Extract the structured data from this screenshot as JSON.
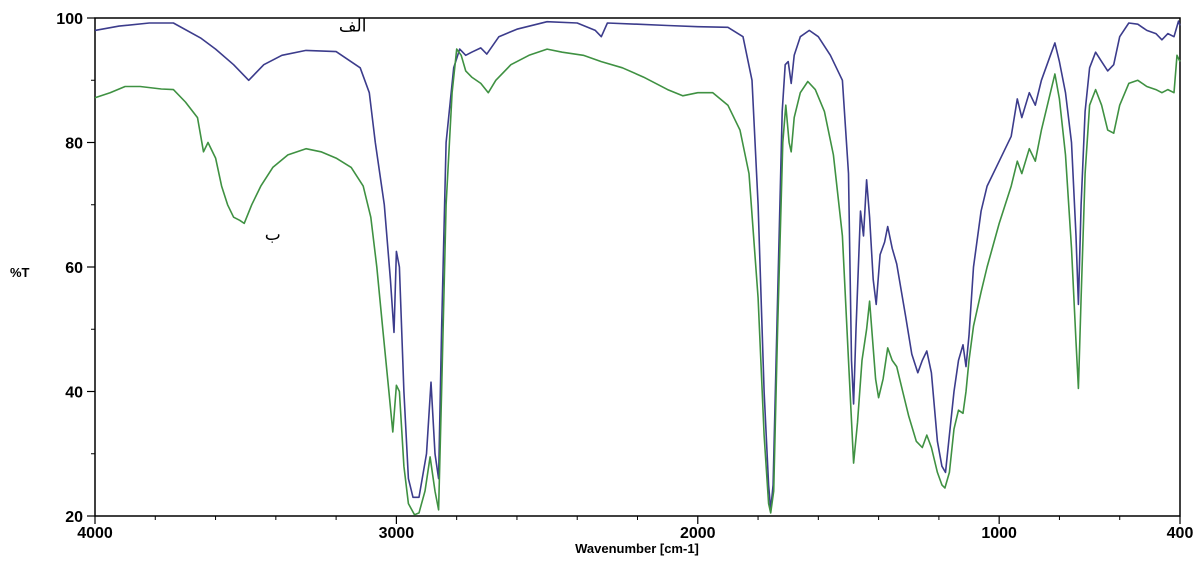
{
  "chart_data": {
    "type": "line",
    "xlabel": "Wavenumber [cm-1]",
    "ylabel": "%T",
    "xlim": [
      4000,
      400
    ],
    "ylim": [
      20,
      100
    ],
    "x_reversed": true,
    "grid": false,
    "x_ticks": [
      4000,
      3000,
      2000,
      1000,
      400
    ],
    "y_ticks": [
      20,
      40,
      60,
      80,
      100
    ],
    "colors": {
      "series_a": "#3c3c8c",
      "series_b": "#3f9142"
    },
    "annotations": [
      {
        "text": "الف",
        "x": 3145,
        "y": 97.8
      },
      {
        "text": "ب",
        "x": 3410,
        "y": 64.3
      }
    ],
    "series": [
      {
        "name": "الف",
        "color": "#3c3c8c",
        "points": [
          [
            4000,
            98.0
          ],
          [
            3920,
            98.7
          ],
          [
            3820,
            99.2
          ],
          [
            3740,
            99.2
          ],
          [
            3650,
            96.8
          ],
          [
            3600,
            95.0
          ],
          [
            3540,
            92.5
          ],
          [
            3490,
            90.0
          ],
          [
            3440,
            92.5
          ],
          [
            3380,
            94.0
          ],
          [
            3300,
            94.8
          ],
          [
            3200,
            94.6
          ],
          [
            3120,
            92.0
          ],
          [
            3090,
            88.0
          ],
          [
            3070,
            80.0
          ],
          [
            3040,
            70.0
          ],
          [
            3020,
            58.0
          ],
          [
            3008,
            49.5
          ],
          [
            3000,
            62.5
          ],
          [
            2990,
            60.0
          ],
          [
            2975,
            40.0
          ],
          [
            2960,
            26.0
          ],
          [
            2945,
            23.0
          ],
          [
            2925,
            23.0
          ],
          [
            2900,
            30.0
          ],
          [
            2885,
            41.5
          ],
          [
            2872,
            30.0
          ],
          [
            2860,
            26.0
          ],
          [
            2850,
            50.0
          ],
          [
            2835,
            80.0
          ],
          [
            2810,
            92.0
          ],
          [
            2790,
            95.0
          ],
          [
            2770,
            94.0
          ],
          [
            2750,
            94.5
          ],
          [
            2720,
            95.2
          ],
          [
            2700,
            94.2
          ],
          [
            2660,
            97.0
          ],
          [
            2600,
            98.2
          ],
          [
            2500,
            99.4
          ],
          [
            2400,
            99.2
          ],
          [
            2340,
            98.0
          ],
          [
            2320,
            97.0
          ],
          [
            2300,
            99.2
          ],
          [
            2200,
            99.0
          ],
          [
            2100,
            98.8
          ],
          [
            2000,
            98.6
          ],
          [
            1900,
            98.5
          ],
          [
            1850,
            97.0
          ],
          [
            1820,
            90.0
          ],
          [
            1800,
            70.0
          ],
          [
            1780,
            40.0
          ],
          [
            1765,
            25.0
          ],
          [
            1758,
            21.0
          ],
          [
            1750,
            25.0
          ],
          [
            1735,
            55.0
          ],
          [
            1720,
            85.0
          ],
          [
            1710,
            92.5
          ],
          [
            1700,
            93.0
          ],
          [
            1690,
            89.5
          ],
          [
            1680,
            94.0
          ],
          [
            1660,
            97.0
          ],
          [
            1630,
            98.0
          ],
          [
            1600,
            97.0
          ],
          [
            1560,
            94.0
          ],
          [
            1520,
            90.0
          ],
          [
            1500,
            75.0
          ],
          [
            1490,
            45.0
          ],
          [
            1483,
            38.0
          ],
          [
            1475,
            50.0
          ],
          [
            1460,
            69.0
          ],
          [
            1450,
            65.0
          ],
          [
            1440,
            74.0
          ],
          [
            1430,
            68.0
          ],
          [
            1418,
            58.0
          ],
          [
            1408,
            54.0
          ],
          [
            1395,
            62.0
          ],
          [
            1380,
            64.0
          ],
          [
            1370,
            66.5
          ],
          [
            1355,
            63.0
          ],
          [
            1340,
            60.5
          ],
          [
            1310,
            52.0
          ],
          [
            1290,
            46.0
          ],
          [
            1270,
            43.0
          ],
          [
            1255,
            45.0
          ],
          [
            1240,
            46.5
          ],
          [
            1225,
            43.0
          ],
          [
            1205,
            32.0
          ],
          [
            1190,
            28.0
          ],
          [
            1178,
            27.0
          ],
          [
            1165,
            33.0
          ],
          [
            1150,
            40.0
          ],
          [
            1135,
            45.0
          ],
          [
            1120,
            47.5
          ],
          [
            1110,
            44.0
          ],
          [
            1100,
            49.0
          ],
          [
            1085,
            60.0
          ],
          [
            1060,
            69.0
          ],
          [
            1040,
            73.0
          ],
          [
            1000,
            77.0
          ],
          [
            960,
            81.0
          ],
          [
            940,
            87.0
          ],
          [
            925,
            84.0
          ],
          [
            900,
            88.0
          ],
          [
            880,
            86.0
          ],
          [
            860,
            90.0
          ],
          [
            830,
            94.0
          ],
          [
            815,
            96.0
          ],
          [
            800,
            93.0
          ],
          [
            780,
            88.0
          ],
          [
            760,
            80.0
          ],
          [
            745,
            65.0
          ],
          [
            737,
            54.0
          ],
          [
            728,
            70.0
          ],
          [
            715,
            85.0
          ],
          [
            700,
            92.0
          ],
          [
            680,
            94.5
          ],
          [
            660,
            93.0
          ],
          [
            640,
            91.5
          ],
          [
            620,
            92.5
          ],
          [
            600,
            97.0
          ],
          [
            570,
            99.2
          ],
          [
            540,
            99.0
          ],
          [
            510,
            98.0
          ],
          [
            480,
            97.5
          ],
          [
            460,
            96.5
          ],
          [
            440,
            97.5
          ],
          [
            420,
            97.0
          ],
          [
            405,
            99.5
          ],
          [
            400,
            98.8
          ]
        ]
      },
      {
        "name": "ب",
        "color": "#3f9142",
        "points": [
          [
            4000,
            87.2
          ],
          [
            3950,
            88.0
          ],
          [
            3900,
            89.0
          ],
          [
            3850,
            89.0
          ],
          [
            3780,
            88.6
          ],
          [
            3740,
            88.5
          ],
          [
            3700,
            86.5
          ],
          [
            3660,
            84.0
          ],
          [
            3640,
            78.5
          ],
          [
            3625,
            80.0
          ],
          [
            3600,
            77.5
          ],
          [
            3580,
            73.0
          ],
          [
            3560,
            70.0
          ],
          [
            3540,
            68.0
          ],
          [
            3520,
            67.5
          ],
          [
            3505,
            67.0
          ],
          [
            3480,
            70.0
          ],
          [
            3450,
            73.0
          ],
          [
            3410,
            76.0
          ],
          [
            3360,
            78.0
          ],
          [
            3300,
            79.0
          ],
          [
            3250,
            78.5
          ],
          [
            3200,
            77.5
          ],
          [
            3150,
            76.0
          ],
          [
            3110,
            73.0
          ],
          [
            3085,
            68.0
          ],
          [
            3065,
            60.0
          ],
          [
            3045,
            50.0
          ],
          [
            3025,
            40.0
          ],
          [
            3012,
            33.5
          ],
          [
            3000,
            41.0
          ],
          [
            2990,
            40.0
          ],
          [
            2975,
            28.0
          ],
          [
            2960,
            22.0
          ],
          [
            2940,
            20.2
          ],
          [
            2925,
            20.5
          ],
          [
            2905,
            24.0
          ],
          [
            2888,
            29.5
          ],
          [
            2872,
            24.0
          ],
          [
            2860,
            21.0
          ],
          [
            2850,
            40.0
          ],
          [
            2835,
            70.0
          ],
          [
            2815,
            88.0
          ],
          [
            2800,
            95.0
          ],
          [
            2785,
            94.0
          ],
          [
            2770,
            91.5
          ],
          [
            2750,
            90.5
          ],
          [
            2720,
            89.5
          ],
          [
            2695,
            88.0
          ],
          [
            2670,
            90.0
          ],
          [
            2620,
            92.5
          ],
          [
            2560,
            94.0
          ],
          [
            2500,
            95.0
          ],
          [
            2450,
            94.5
          ],
          [
            2380,
            94.0
          ],
          [
            2320,
            93.0
          ],
          [
            2250,
            92.0
          ],
          [
            2180,
            90.5
          ],
          [
            2100,
            88.5
          ],
          [
            2050,
            87.5
          ],
          [
            2000,
            88.0
          ],
          [
            1950,
            88.0
          ],
          [
            1900,
            86.0
          ],
          [
            1860,
            82.0
          ],
          [
            1830,
            75.0
          ],
          [
            1800,
            55.0
          ],
          [
            1780,
            33.0
          ],
          [
            1765,
            22.0
          ],
          [
            1758,
            20.5
          ],
          [
            1748,
            24.0
          ],
          [
            1735,
            50.0
          ],
          [
            1718,
            80.0
          ],
          [
            1708,
            86.0
          ],
          [
            1697,
            80.0
          ],
          [
            1690,
            78.5
          ],
          [
            1680,
            84.0
          ],
          [
            1660,
            88.0
          ],
          [
            1635,
            89.8
          ],
          [
            1610,
            88.5
          ],
          [
            1580,
            85.0
          ],
          [
            1550,
            78.0
          ],
          [
            1520,
            65.0
          ],
          [
            1500,
            45.0
          ],
          [
            1483,
            28.5
          ],
          [
            1470,
            35.0
          ],
          [
            1455,
            45.0
          ],
          [
            1440,
            50.0
          ],
          [
            1430,
            54.5
          ],
          [
            1418,
            47.0
          ],
          [
            1410,
            42.0
          ],
          [
            1400,
            39.0
          ],
          [
            1385,
            42.0
          ],
          [
            1370,
            47.0
          ],
          [
            1355,
            45.0
          ],
          [
            1340,
            44.0
          ],
          [
            1320,
            40.0
          ],
          [
            1300,
            36.0
          ],
          [
            1275,
            32.0
          ],
          [
            1255,
            31.0
          ],
          [
            1240,
            33.0
          ],
          [
            1225,
            31.0
          ],
          [
            1205,
            27.0
          ],
          [
            1190,
            25.0
          ],
          [
            1180,
            24.5
          ],
          [
            1165,
            27.0
          ],
          [
            1150,
            34.0
          ],
          [
            1135,
            37.0
          ],
          [
            1120,
            36.5
          ],
          [
            1110,
            40.0
          ],
          [
            1100,
            45.0
          ],
          [
            1085,
            50.5
          ],
          [
            1060,
            56.0
          ],
          [
            1040,
            60.0
          ],
          [
            1000,
            67.0
          ],
          [
            960,
            73.0
          ],
          [
            940,
            77.0
          ],
          [
            925,
            75.0
          ],
          [
            900,
            79.0
          ],
          [
            880,
            77.0
          ],
          [
            860,
            82.0
          ],
          [
            830,
            88.0
          ],
          [
            815,
            91.0
          ],
          [
            800,
            87.0
          ],
          [
            780,
            78.0
          ],
          [
            760,
            63.0
          ],
          [
            745,
            48.0
          ],
          [
            737,
            40.5
          ],
          [
            728,
            55.0
          ],
          [
            715,
            75.0
          ],
          [
            700,
            86.0
          ],
          [
            680,
            88.5
          ],
          [
            660,
            86.0
          ],
          [
            640,
            82.0
          ],
          [
            620,
            81.5
          ],
          [
            600,
            86.0
          ],
          [
            570,
            89.5
          ],
          [
            540,
            90.0
          ],
          [
            510,
            89.0
          ],
          [
            480,
            88.5
          ],
          [
            460,
            88.0
          ],
          [
            440,
            88.5
          ],
          [
            420,
            88.0
          ],
          [
            410,
            94.0
          ],
          [
            400,
            93.0
          ]
        ]
      }
    ]
  }
}
